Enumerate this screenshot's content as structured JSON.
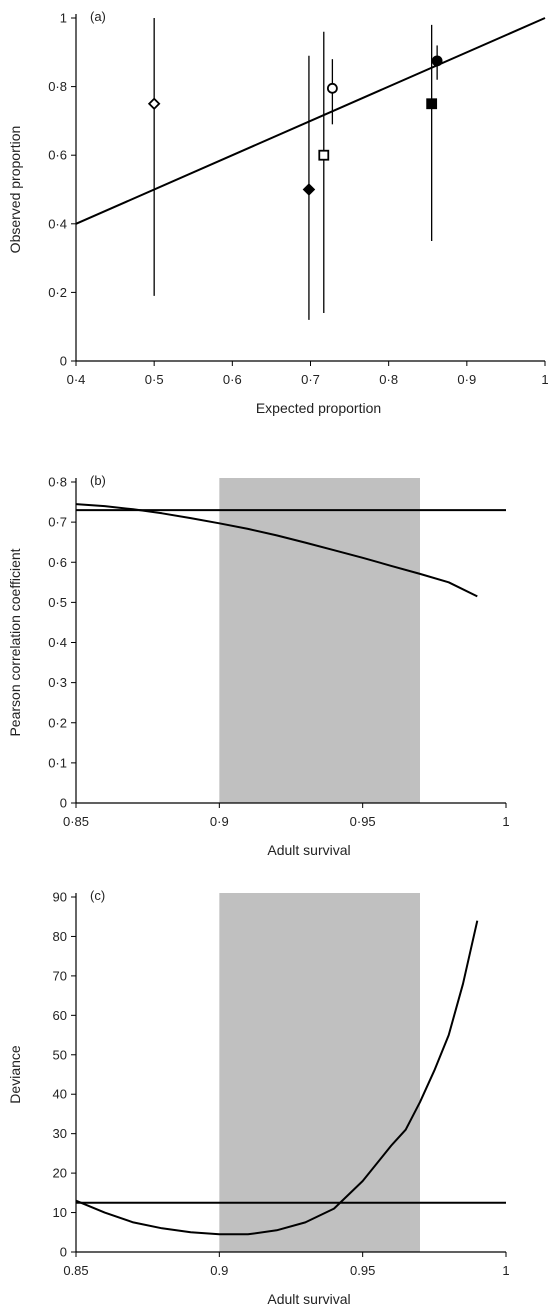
{
  "chart_data": [
    {
      "panel_label": "(a)",
      "type": "scatter",
      "xlabel": "Expected proportion",
      "ylabel": "Observed proportion",
      "xlim": [
        0.4,
        1.0
      ],
      "ylim": [
        0,
        1.0
      ],
      "x_ticks": [
        0.4,
        0.5,
        0.6,
        0.7,
        0.8,
        0.9,
        1.0
      ],
      "x_tick_labels": [
        "0·4",
        "0·5",
        "0·6",
        "0·7",
        "0·8",
        "0·9",
        "1"
      ],
      "y_ticks": [
        0,
        0.2,
        0.4,
        0.6,
        0.8,
        1.0
      ],
      "y_tick_labels": [
        "0",
        "0·2",
        "0·4",
        "0·6",
        "0·8",
        "1"
      ],
      "reference_line": {
        "x": [
          0.4,
          1.0
        ],
        "y": [
          0.4,
          1.0
        ]
      },
      "points": [
        {
          "marker": "diamond-open",
          "x": 0.5,
          "y": 0.75,
          "err_low": 0.19,
          "err_high": 1.0
        },
        {
          "marker": "diamond-filled",
          "x": 0.698,
          "y": 0.5,
          "err_low": 0.12,
          "err_high": 0.89
        },
        {
          "marker": "square-open",
          "x": 0.717,
          "y": 0.6,
          "err_low": 0.14,
          "err_high": 0.96
        },
        {
          "marker": "circle-open",
          "x": 0.728,
          "y": 0.795,
          "err_low": 0.69,
          "err_high": 0.88
        },
        {
          "marker": "square-filled",
          "x": 0.855,
          "y": 0.75,
          "err_low": 0.35,
          "err_high": 0.98
        },
        {
          "marker": "circle-filled",
          "x": 0.862,
          "y": 0.875,
          "err_low": 0.82,
          "err_high": 0.92
        }
      ]
    },
    {
      "panel_label": "(b)",
      "type": "line",
      "xlabel": "Adult survival",
      "ylabel": "Pearson correlation coefficient",
      "xlim": [
        0.85,
        1.0
      ],
      "ylim": [
        0,
        0.8
      ],
      "x_ticks": [
        0.85,
        0.9,
        0.95,
        1.0
      ],
      "x_tick_labels": [
        "0·85",
        "0·9",
        "0·95",
        "1"
      ],
      "y_ticks": [
        0,
        0.1,
        0.2,
        0.3,
        0.4,
        0.5,
        0.6,
        0.7,
        0.8
      ],
      "y_tick_labels": [
        "0",
        "0·1",
        "0·2",
        "0·3",
        "0·4",
        "0·5",
        "0·6",
        "0·7",
        "0·8"
      ],
      "shaded_region": {
        "x": [
          0.9,
          0.97
        ]
      },
      "hline": 0.73,
      "series": [
        {
          "x": [
            0.85,
            0.86,
            0.87,
            0.88,
            0.89,
            0.9,
            0.91,
            0.92,
            0.93,
            0.94,
            0.95,
            0.96,
            0.97,
            0.98,
            0.99
          ],
          "values": [
            0.745,
            0.74,
            0.732,
            0.722,
            0.71,
            0.697,
            0.683,
            0.667,
            0.649,
            0.63,
            0.611,
            0.591,
            0.571,
            0.55,
            0.515
          ]
        }
      ]
    },
    {
      "panel_label": "(c)",
      "type": "line",
      "xlabel": "Adult survival",
      "ylabel": "Deviance",
      "xlim": [
        0.85,
        1.0
      ],
      "ylim": [
        0,
        90
      ],
      "x_ticks": [
        0.85,
        0.9,
        0.95,
        1.0
      ],
      "x_tick_labels": [
        "0.85",
        "0.9",
        "0.95",
        "1"
      ],
      "y_ticks": [
        0,
        10,
        20,
        30,
        40,
        50,
        60,
        70,
        80,
        90
      ],
      "y_tick_labels": [
        "0",
        "10",
        "20",
        "30",
        "40",
        "50",
        "60",
        "70",
        "80",
        "90"
      ],
      "shaded_region": {
        "x": [
          0.9,
          0.97
        ]
      },
      "hline": 12.5,
      "series": [
        {
          "x": [
            0.85,
            0.86,
            0.87,
            0.88,
            0.89,
            0.9,
            0.91,
            0.92,
            0.93,
            0.94,
            0.95,
            0.96,
            0.965,
            0.97,
            0.975,
            0.98,
            0.985,
            0.99
          ],
          "values": [
            13,
            10,
            7.5,
            6,
            5,
            4.5,
            4.5,
            5.5,
            7.5,
            11,
            18,
            27,
            31,
            38,
            46,
            55,
            68,
            84
          ]
        }
      ]
    }
  ]
}
